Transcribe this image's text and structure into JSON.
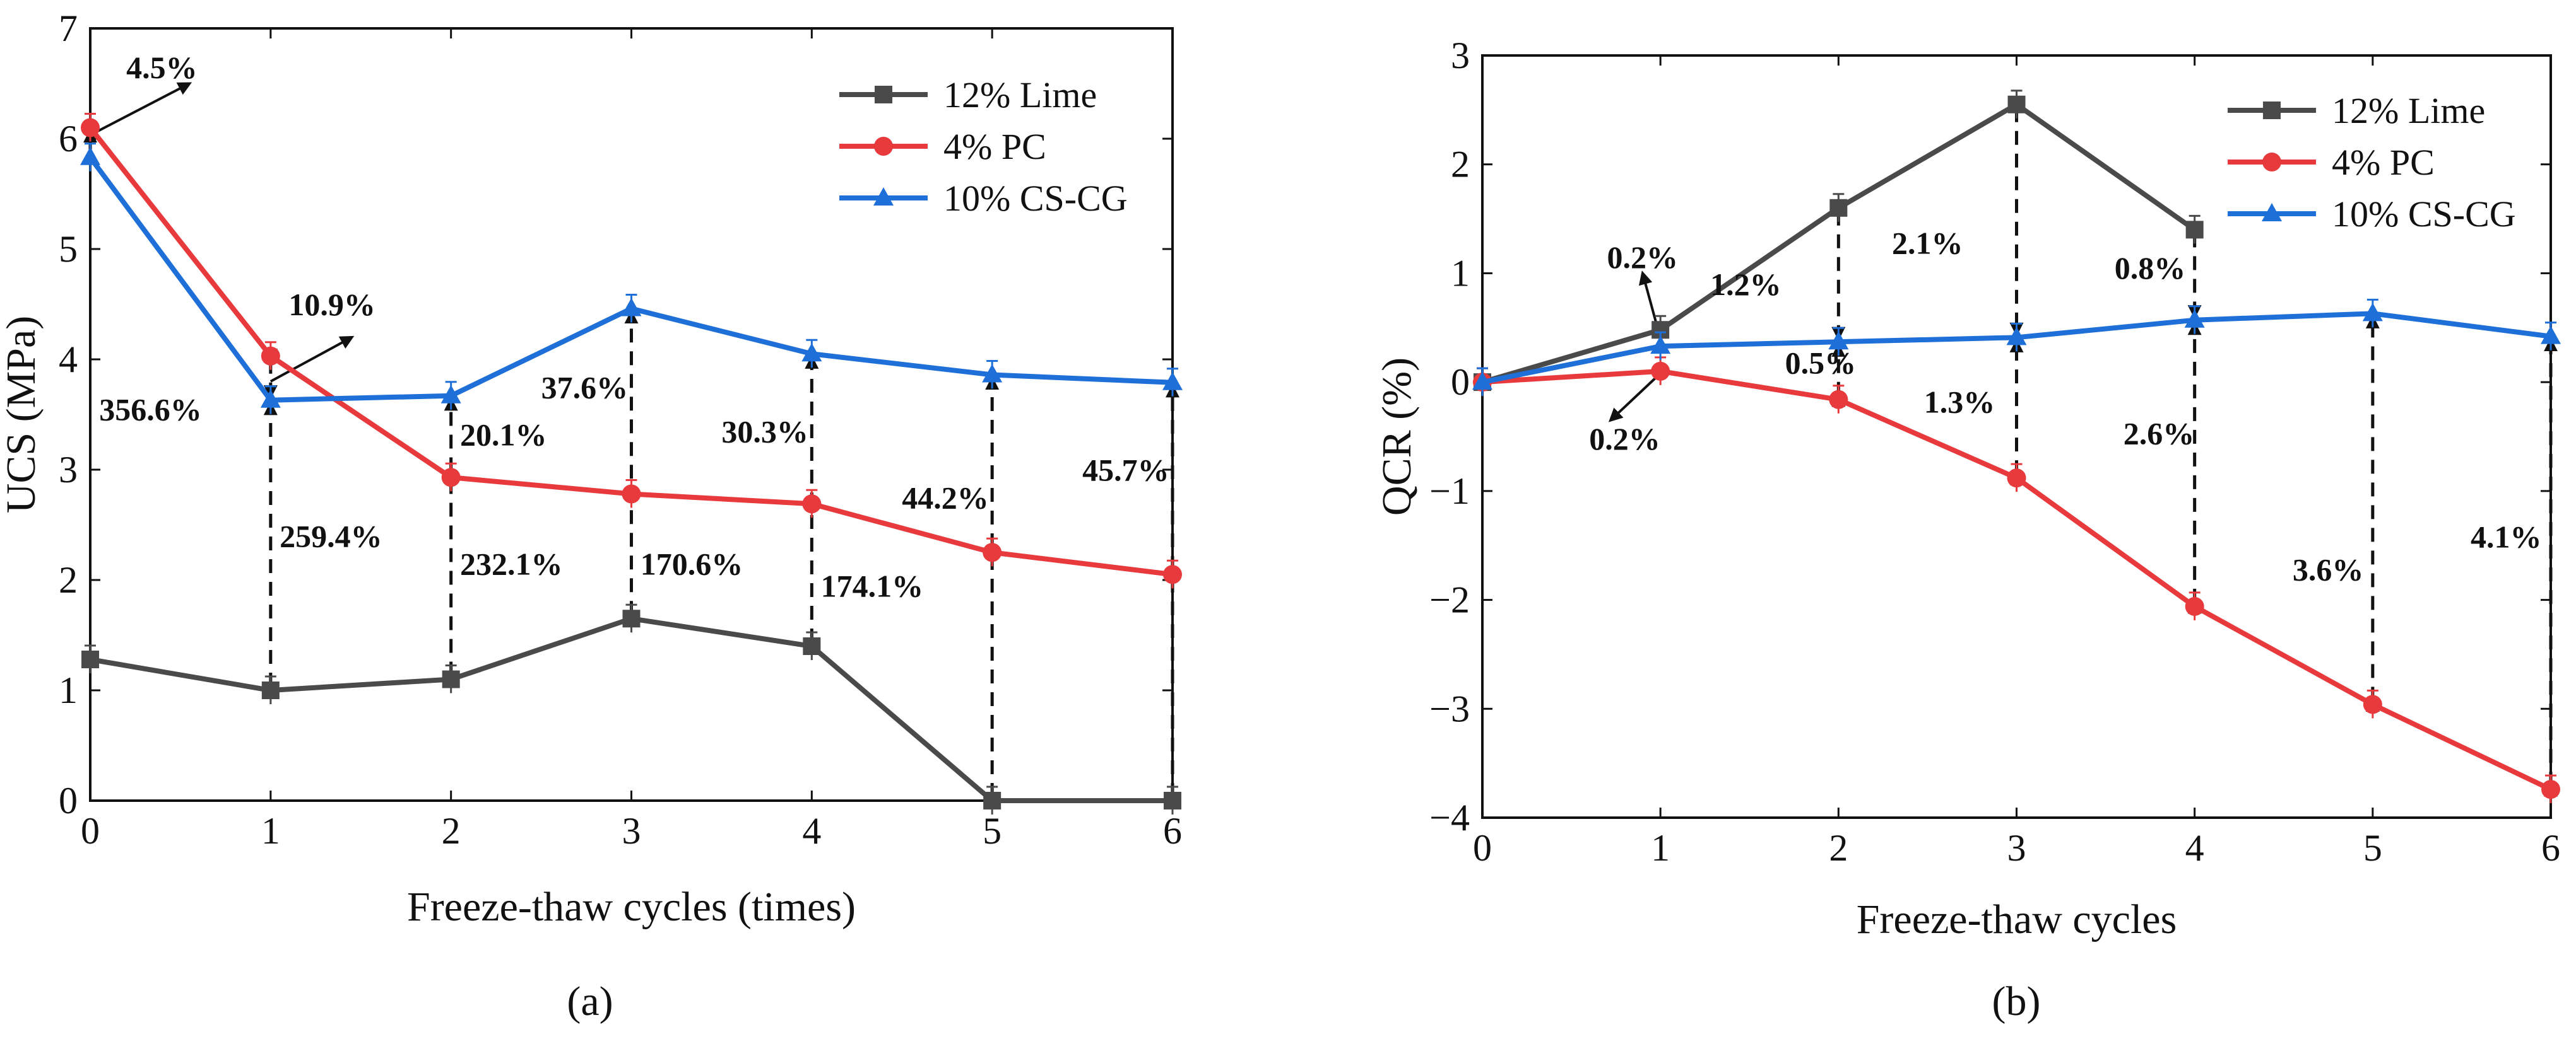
{
  "chart_data": [
    {
      "panel": "a",
      "type": "line",
      "caption": "(a)",
      "xlabel": "Freeze-thaw cycles (times)",
      "ylabel": "UCS (MPa)",
      "xlim": [
        0,
        6
      ],
      "ylim": [
        0,
        7
      ],
      "xticks": [
        "0",
        "1",
        "2",
        "3",
        "4",
        "5",
        "6"
      ],
      "yticks": [
        "0",
        "1",
        "2",
        "3",
        "4",
        "5",
        "6",
        "7"
      ],
      "legend_position": "top-right",
      "x": [
        0,
        1,
        2,
        3,
        4,
        5,
        6
      ],
      "series": [
        {
          "name": "12% Lime",
          "color": "#4a4a4a",
          "marker": "square",
          "values": [
            1.28,
            1.0,
            1.1,
            1.65,
            1.4,
            0.0,
            0.0
          ]
        },
        {
          "name": "4% PC",
          "color": "#e8393c",
          "marker": "circle",
          "values": [
            6.1,
            4.03,
            2.93,
            2.78,
            2.69,
            2.25,
            2.05
          ]
        },
        {
          "name": "10% CS-CG",
          "color": "#1f6fd8",
          "marker": "triangle",
          "values": [
            5.83,
            3.63,
            3.67,
            4.46,
            4.05,
            3.86,
            3.79
          ]
        }
      ],
      "annotations": [
        {
          "text": "4.5%",
          "x": 0.2,
          "y": 6.55
        },
        {
          "text": "10.9%",
          "x": 1.1,
          "y": 4.4
        },
        {
          "text": "356.6%",
          "x": 0.05,
          "y": 3.45
        },
        {
          "text": "20.1%",
          "x": 2.05,
          "y": 3.22
        },
        {
          "text": "37.6%",
          "x": 2.5,
          "y": 3.65
        },
        {
          "text": "30.3%",
          "x": 3.5,
          "y": 3.25
        },
        {
          "text": "44.2%",
          "x": 4.5,
          "y": 2.65
        },
        {
          "text": "45.7%",
          "x": 5.5,
          "y": 2.9
        },
        {
          "text": "259.4%",
          "x": 1.05,
          "y": 2.3
        },
        {
          "text": "232.1%",
          "x": 2.05,
          "y": 2.05
        },
        {
          "text": "170.6%",
          "x": 3.05,
          "y": 2.05
        },
        {
          "text": "174.1%",
          "x": 4.05,
          "y": 1.85
        }
      ]
    },
    {
      "panel": "b",
      "type": "line",
      "caption": "(b)",
      "xlabel": "Freeze-thaw cycles",
      "ylabel": "QCR (%)",
      "xlim": [
        0,
        6
      ],
      "ylim": [
        -4,
        3
      ],
      "xticks": [
        "0",
        "1",
        "2",
        "3",
        "4",
        "5",
        "6"
      ],
      "yticks": [
        "−4",
        "−3",
        "−2",
        "−1",
        "0",
        "1",
        "2",
        "3"
      ],
      "legend_position": "top-right",
      "x": [
        0,
        1,
        2,
        3,
        4,
        5,
        6
      ],
      "series": [
        {
          "name": "12% Lime",
          "color": "#4a4a4a",
          "marker": "square",
          "x": [
            0,
            1,
            2,
            3,
            4
          ],
          "values": [
            0.0,
            0.48,
            1.6,
            2.55,
            1.4
          ]
        },
        {
          "name": "4% PC",
          "color": "#e8393c",
          "marker": "circle",
          "values": [
            0.0,
            0.1,
            -0.16,
            -0.88,
            -2.06,
            -2.96,
            -3.74
          ]
        },
        {
          "name": "10% CS-CG",
          "color": "#1f6fd8",
          "marker": "triangle",
          "values": [
            0.0,
            0.33,
            0.37,
            0.41,
            0.57,
            0.63,
            0.42
          ]
        }
      ],
      "annotations": [
        {
          "text": "0.2%",
          "x": 0.7,
          "y": 1.05
        },
        {
          "text": "1.2%",
          "x": 1.28,
          "y": 0.8
        },
        {
          "text": "2.1%",
          "x": 2.3,
          "y": 1.18
        },
        {
          "text": "0.8%",
          "x": 3.55,
          "y": 0.95
        },
        {
          "text": "0.5%",
          "x": 1.7,
          "y": 0.08
        },
        {
          "text": "0.2%",
          "x": 0.6,
          "y": -0.62
        },
        {
          "text": "1.3%",
          "x": 2.48,
          "y": -0.28
        },
        {
          "text": "2.6%",
          "x": 3.6,
          "y": -0.57
        },
        {
          "text": "3.6%",
          "x": 4.55,
          "y": -1.82
        },
        {
          "text": "4.1%",
          "x": 5.55,
          "y": -1.52
        }
      ]
    }
  ]
}
